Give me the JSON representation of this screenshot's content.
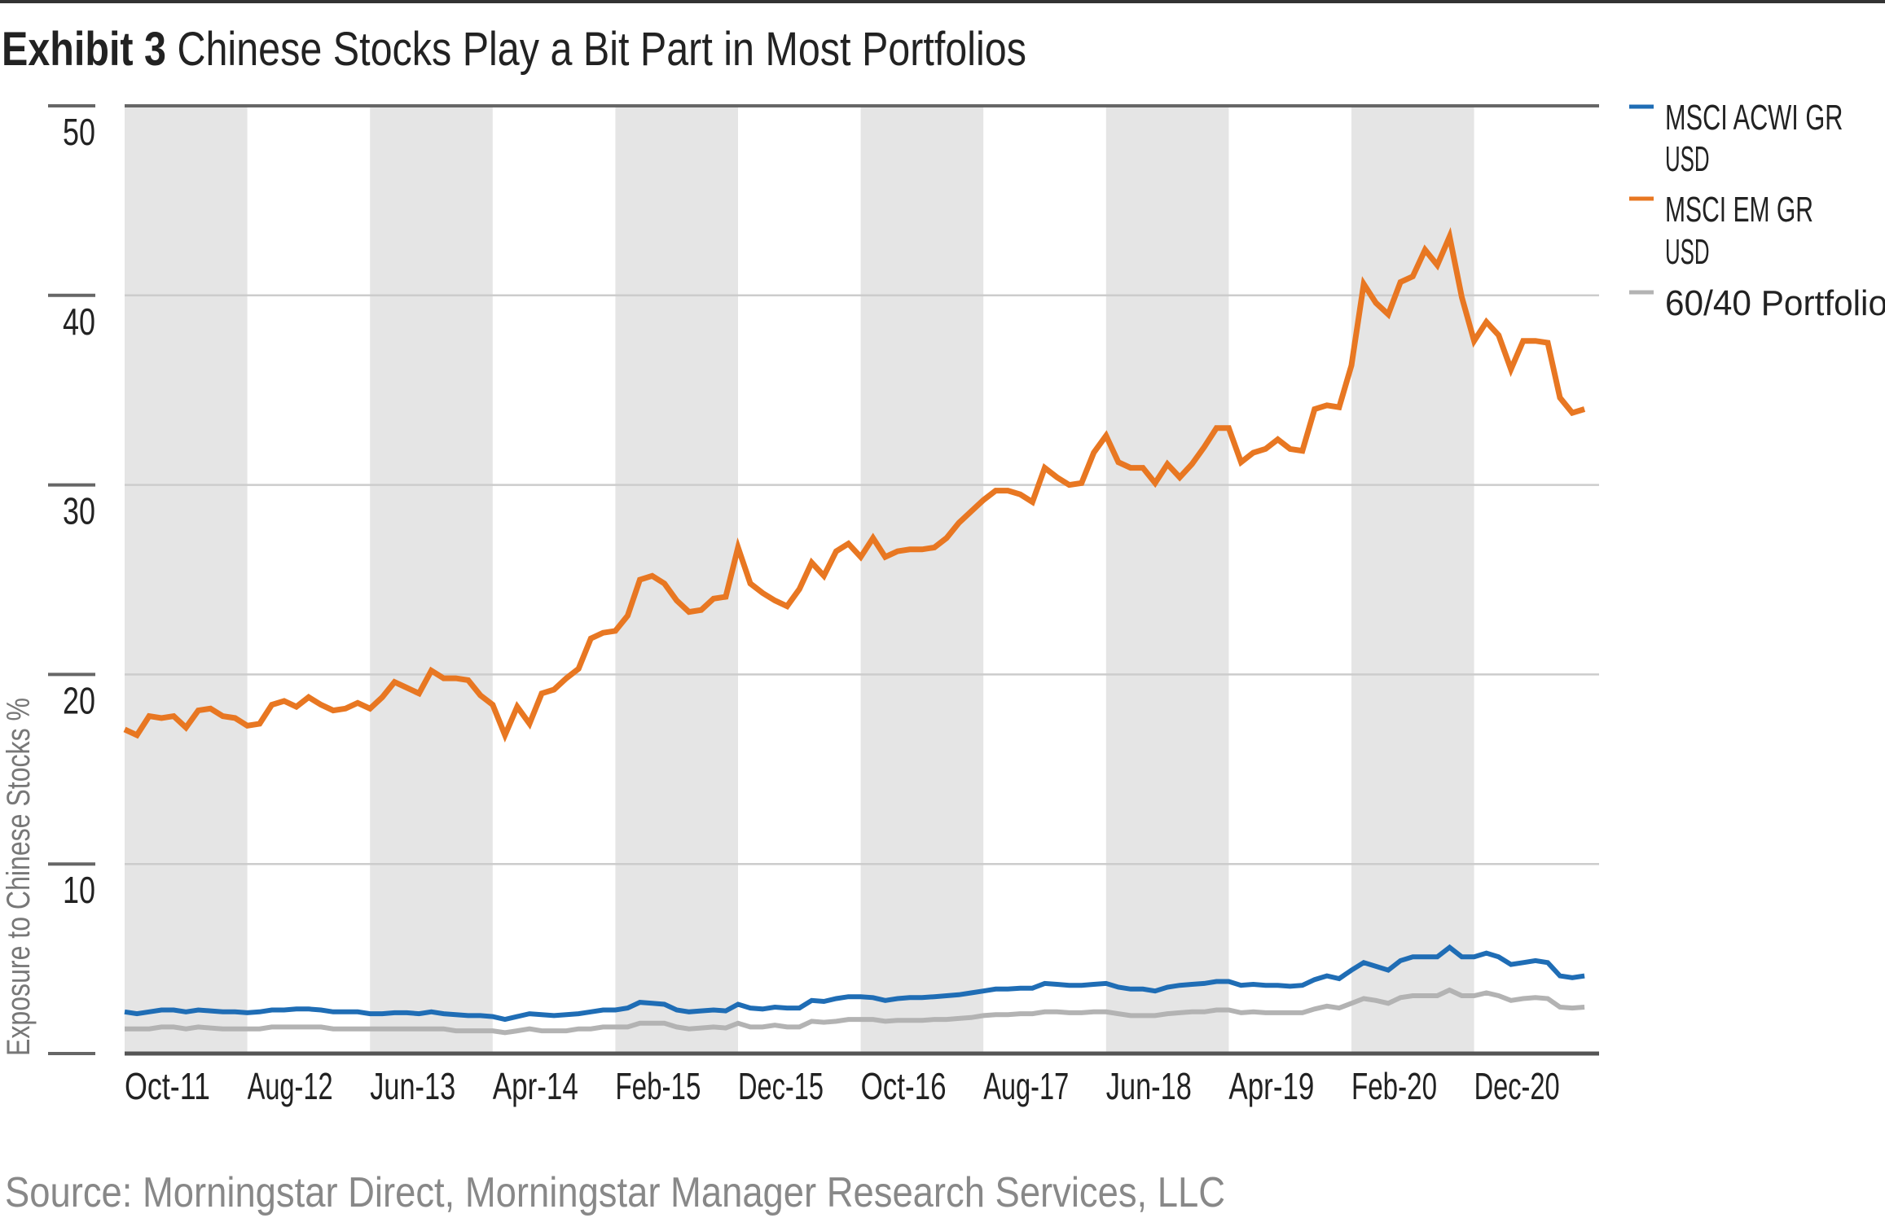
{
  "chart_data": {
    "type": "line",
    "title_prefix": "Exhibit 3",
    "title": "Chinese Stocks Play a Bit Part in Most Portfolios",
    "ylabel": "Exposure to Chinese Stocks %",
    "xlabel": "",
    "ylim": [
      0,
      50
    ],
    "yticks": [
      10,
      20,
      30,
      40,
      50
    ],
    "x_start": "Oct-11",
    "x_end": "Sep-21",
    "x_frequency": "monthly",
    "x_tick_labels": [
      "Oct-11",
      "Aug-12",
      "Jun-13",
      "Apr-14",
      "Feb-15",
      "Dec-15",
      "Oct-16",
      "Aug-17",
      "Jun-18",
      "Apr-19",
      "Feb-20",
      "Dec-20"
    ],
    "grid": true,
    "alternating_shaded_bands": true,
    "legend_placement": "right",
    "source": "Source: Morningstar Direct, Morningstar Manager Research Services, LLC",
    "colors": {
      "band": "#E5E5E5",
      "grid": "#CCCCCC",
      "axis": "#555555"
    },
    "series": [
      {
        "name": "MSCI ACWI GR USD",
        "legend_lines": [
          "MSCI ACWI GR",
          "USD"
        ],
        "color": "#1F6DB5",
        "values": [
          2.2,
          2.1,
          2.2,
          2.3,
          2.3,
          2.2,
          2.3,
          2.25,
          2.2,
          2.2,
          2.15,
          2.2,
          2.3,
          2.3,
          2.35,
          2.35,
          2.3,
          2.2,
          2.2,
          2.2,
          2.1,
          2.1,
          2.15,
          2.15,
          2.1,
          2.2,
          2.1,
          2.05,
          2.0,
          2.0,
          1.95,
          1.8,
          1.95,
          2.1,
          2.05,
          2.0,
          2.05,
          2.1,
          2.2,
          2.3,
          2.3,
          2.4,
          2.7,
          2.65,
          2.6,
          2.3,
          2.2,
          2.25,
          2.3,
          2.25,
          2.6,
          2.4,
          2.35,
          2.45,
          2.4,
          2.4,
          2.8,
          2.75,
          2.9,
          3.0,
          3.0,
          2.95,
          2.8,
          2.9,
          2.95,
          2.95,
          3.0,
          3.05,
          3.1,
          3.2,
          3.3,
          3.4,
          3.4,
          3.45,
          3.45,
          3.7,
          3.65,
          3.6,
          3.6,
          3.65,
          3.7,
          3.5,
          3.4,
          3.4,
          3.3,
          3.5,
          3.6,
          3.65,
          3.7,
          3.8,
          3.8,
          3.6,
          3.65,
          3.6,
          3.6,
          3.55,
          3.6,
          3.9,
          4.1,
          3.95,
          4.4,
          4.8,
          4.6,
          4.4,
          4.9,
          5.1,
          5.1,
          5.1,
          5.6,
          5.1,
          5.1,
          5.3,
          5.1,
          4.7,
          4.8,
          4.9,
          4.8,
          4.1,
          4.0,
          4.1
        ]
      },
      {
        "name": "MSCI EM GR USD",
        "legend_lines": [
          "MSCI EM GR",
          "USD"
        ],
        "color": "#E87722",
        "values": [
          17.1,
          16.8,
          17.8,
          17.7,
          17.8,
          17.2,
          18.1,
          18.2,
          17.8,
          17.7,
          17.3,
          17.4,
          18.4,
          18.6,
          18.3,
          18.8,
          18.4,
          18.1,
          18.2,
          18.5,
          18.2,
          18.8,
          19.6,
          19.3,
          19.0,
          20.2,
          19.8,
          19.8,
          19.7,
          18.9,
          18.4,
          16.8,
          18.3,
          17.4,
          19.0,
          19.2,
          19.8,
          20.3,
          21.9,
          22.2,
          22.3,
          23.1,
          25.0,
          25.2,
          24.8,
          23.9,
          23.3,
          23.4,
          24.0,
          24.1,
          26.7,
          24.8,
          24.3,
          23.9,
          23.6,
          24.5,
          25.9,
          25.2,
          26.5,
          26.9,
          26.2,
          27.2,
          26.2,
          26.5,
          26.6,
          26.6,
          26.7,
          27.2,
          28.0,
          28.6,
          29.2,
          29.7,
          29.7,
          29.5,
          29.1,
          30.9,
          30.4,
          30.0,
          30.1,
          31.7,
          32.6,
          31.2,
          30.9,
          30.9,
          30.1,
          31.1,
          30.4,
          31.1,
          32.0,
          33.0,
          33.0,
          31.2,
          31.7,
          31.9,
          32.4,
          31.9,
          31.8,
          34.0,
          34.2,
          34.1,
          36.3,
          40.6,
          39.6,
          39.0,
          40.7,
          41.0,
          42.4,
          41.6,
          43.1,
          39.9,
          37.6,
          38.6,
          37.9,
          36.1,
          37.6,
          37.6,
          37.5,
          34.6,
          33.8,
          34.0
        ]
      },
      {
        "name": "60/40 Portfolio",
        "legend_lines": [
          "60/40 Portfolio"
        ],
        "color": "#B3B3B3",
        "values": [
          1.3,
          1.3,
          1.3,
          1.4,
          1.4,
          1.3,
          1.4,
          1.35,
          1.3,
          1.3,
          1.3,
          1.3,
          1.4,
          1.4,
          1.4,
          1.4,
          1.4,
          1.3,
          1.3,
          1.3,
          1.3,
          1.3,
          1.3,
          1.3,
          1.3,
          1.3,
          1.3,
          1.2,
          1.2,
          1.2,
          1.2,
          1.1,
          1.2,
          1.3,
          1.2,
          1.2,
          1.2,
          1.3,
          1.3,
          1.4,
          1.4,
          1.4,
          1.6,
          1.6,
          1.6,
          1.4,
          1.3,
          1.35,
          1.4,
          1.35,
          1.6,
          1.4,
          1.4,
          1.5,
          1.4,
          1.4,
          1.7,
          1.65,
          1.7,
          1.8,
          1.8,
          1.8,
          1.7,
          1.75,
          1.75,
          1.75,
          1.8,
          1.8,
          1.85,
          1.9,
          2.0,
          2.05,
          2.05,
          2.1,
          2.1,
          2.2,
          2.2,
          2.15,
          2.15,
          2.2,
          2.2,
          2.1,
          2.0,
          2.0,
          2.0,
          2.1,
          2.15,
          2.2,
          2.2,
          2.3,
          2.3,
          2.15,
          2.2,
          2.15,
          2.15,
          2.15,
          2.15,
          2.35,
          2.5,
          2.4,
          2.65,
          2.9,
          2.8,
          2.65,
          2.95,
          3.05,
          3.05,
          3.05,
          3.35,
          3.05,
          3.05,
          3.2,
          3.05,
          2.8,
          2.9,
          2.95,
          2.9,
          2.45,
          2.4,
          2.45
        ]
      }
    ]
  }
}
